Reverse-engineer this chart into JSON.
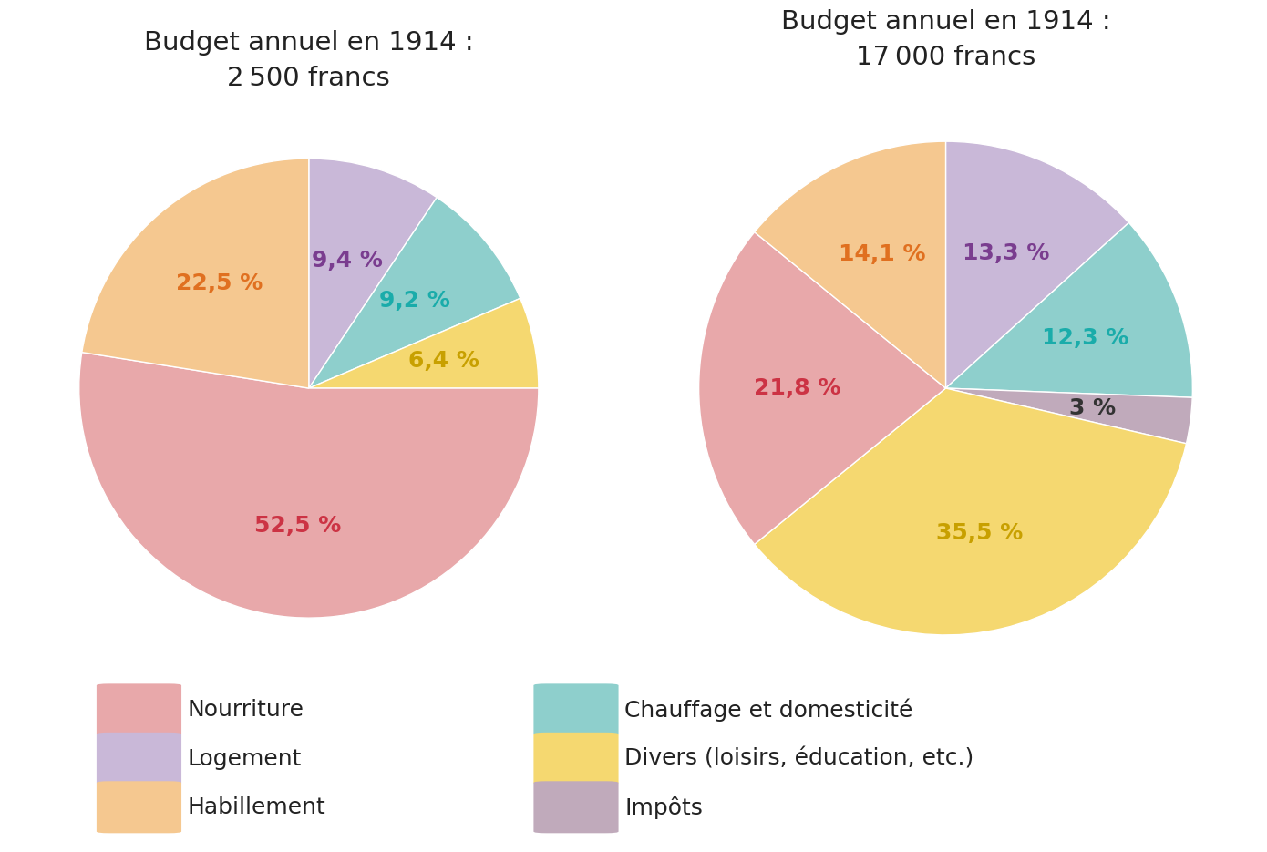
{
  "title1": "Budget annuel en 1914 :\n2 500 francs",
  "title2": "Budget annuel en 1914 :\n17 000 francs",
  "pie1": {
    "values": [
      9.4,
      9.2,
      6.4,
      52.5,
      22.5
    ],
    "colors": [
      "#c9b8d8",
      "#8ecfcc",
      "#f5d870",
      "#e8a8aa",
      "#f5c890"
    ],
    "label_texts": [
      "9,4 %",
      "9,2 %",
      "6,4 %",
      "52,5 %",
      "22,5 %"
    ],
    "label_colors": [
      "#7a3d8f",
      "#1aacaa",
      "#c8a000",
      "#cc3344",
      "#e07020"
    ],
    "label_radii": [
      0.58,
      0.6,
      0.6,
      0.6,
      0.6
    ],
    "startangle": 90
  },
  "pie2": {
    "values": [
      13.3,
      12.3,
      3.0,
      35.5,
      21.8,
      14.1
    ],
    "colors": [
      "#c9b8d8",
      "#8ecfcc",
      "#c0aabb",
      "#f5d870",
      "#e8a8aa",
      "#f5c890"
    ],
    "label_texts": [
      "13,3 %",
      "12,3 %",
      "3 %",
      "35,5 %",
      "21,8 %",
      "14,1 %"
    ],
    "label_colors": [
      "#7a3d8f",
      "#1aacaa",
      "#333333",
      "#c8a000",
      "#cc3344",
      "#e07020"
    ],
    "label_radii": [
      0.6,
      0.6,
      0.6,
      0.6,
      0.6,
      0.6
    ],
    "startangle": 90
  },
  "legend_items": [
    {
      "label": "Nourriture",
      "color": "#e8a8aa"
    },
    {
      "label": "Logement",
      "color": "#c9b8d8"
    },
    {
      "label": "Habillement",
      "color": "#f5c890"
    },
    {
      "label": "Chauffage et domesticité",
      "color": "#8ecfcc"
    },
    {
      "label": "Divers (loisirs, éducation, etc.)",
      "color": "#f5d870"
    },
    {
      "label": "Impôts",
      "color": "#c0aabb"
    }
  ],
  "bg_color": "#ffffff",
  "title_fontsize": 21,
  "label_fontsize": 18,
  "legend_fontsize": 18
}
